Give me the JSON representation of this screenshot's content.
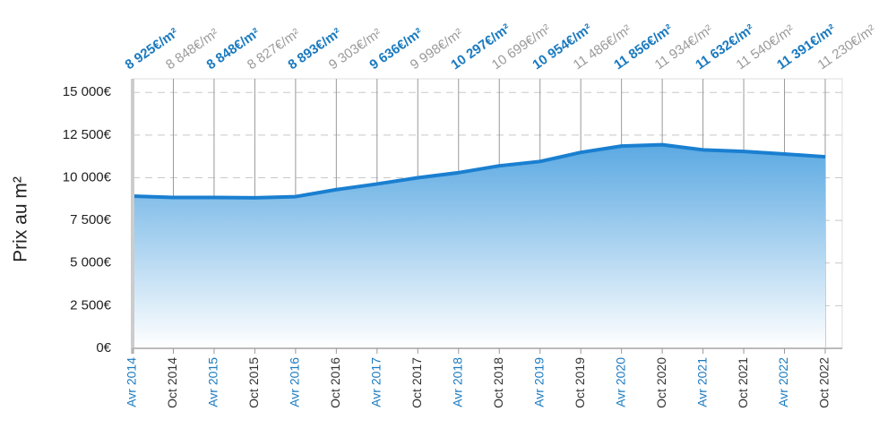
{
  "chart_data": {
    "type": "area",
    "y_label": "Prix au m²",
    "categories": [
      "Avr 2014",
      "Oct 2014",
      "Avr 2015",
      "Oct 2015",
      "Avr 2016",
      "Oct 2016",
      "Avr 2017",
      "Oct 2017",
      "Avr 2018",
      "Oct 2018",
      "Avr 2019",
      "Oct 2019",
      "Avr 2020",
      "Oct 2020",
      "Avr 2021",
      "Oct 2021",
      "Avr 2022",
      "Oct 2022"
    ],
    "values": [
      8925,
      8848,
      8848,
      8827,
      8893,
      9303,
      9636,
      9998,
      10297,
      10699,
      10954,
      11486,
      11856,
      11934,
      11632,
      11540,
      11391,
      11230
    ],
    "value_labels": [
      "8 925€/m²",
      "8 848€/m²",
      "8 848€/m²",
      "8 827€/m²",
      "8 893€/m²",
      "9 303€/m²",
      "9 636€/m²",
      "9 998€/m²",
      "10 297€/m²",
      "10 699€/m²",
      "10 954€/m²",
      "11 486€/m²",
      "11 856€/m²",
      "11 934€/m²",
      "11 632€/m²",
      "11 540€/m²",
      "11 391€/m²",
      "11 230€/m²"
    ],
    "color": "#1a7fd0",
    "ylim": [
      0,
      15800
    ],
    "yticks": [
      {
        "value": 0,
        "label": "0€"
      },
      {
        "value": 2500,
        "label": "2 500€"
      },
      {
        "value": 5000,
        "label": "5 000€"
      },
      {
        "value": 7500,
        "label": "7 500€"
      },
      {
        "value": 10000,
        "label": "10 000€"
      },
      {
        "value": 12500,
        "label": "12 500€"
      },
      {
        "value": 15000,
        "label": "15 000€"
      }
    ],
    "grid": true
  }
}
